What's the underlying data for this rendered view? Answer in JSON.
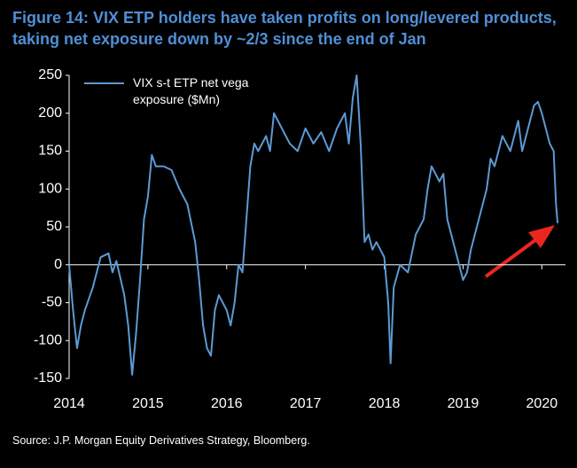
{
  "chart_data": {
    "type": "line",
    "title": "Figure 14: VIX ETP holders have taken profits on long/levered products, taking net exposure down by ~2/3 since the end of Jan",
    "source": "Source: J.P. Morgan Equity Derivatives Strategy, Bloomberg.",
    "x": [
      2014.0,
      2014.05,
      2014.1,
      2014.15,
      2014.2,
      2014.3,
      2014.4,
      2014.5,
      2014.55,
      2014.6,
      2014.7,
      2014.75,
      2014.8,
      2014.85,
      2014.9,
      2014.95,
      2015.0,
      2015.05,
      2015.1,
      2015.2,
      2015.3,
      2015.4,
      2015.5,
      2015.6,
      2015.65,
      2015.7,
      2015.75,
      2015.8,
      2015.85,
      2015.9,
      2016.0,
      2016.05,
      2016.1,
      2016.15,
      2016.2,
      2016.25,
      2016.3,
      2016.35,
      2016.4,
      2016.5,
      2016.55,
      2016.6,
      2016.7,
      2016.8,
      2016.9,
      2017.0,
      2017.1,
      2017.2,
      2017.3,
      2017.4,
      2017.5,
      2017.55,
      2017.6,
      2017.65,
      2017.7,
      2017.75,
      2017.8,
      2017.85,
      2017.9,
      2018.0,
      2018.05,
      2018.08,
      2018.12,
      2018.2,
      2018.3,
      2018.4,
      2018.5,
      2018.55,
      2018.6,
      2018.7,
      2018.75,
      2018.8,
      2018.85,
      2018.9,
      2019.0,
      2019.05,
      2019.1,
      2019.2,
      2019.3,
      2019.35,
      2019.4,
      2019.5,
      2019.6,
      2019.7,
      2019.75,
      2019.8,
      2019.9,
      2019.95,
      2020.0,
      2020.05,
      2020.1,
      2020.15,
      2020.18,
      2020.2
    ],
    "series": [
      {
        "name": "VIX s-t ETP net vega exposure ($Mn)",
        "color": "#5b9bd5",
        "values": [
          0,
          -60,
          -110,
          -80,
          -60,
          -30,
          10,
          15,
          -10,
          5,
          -40,
          -80,
          -145,
          -90,
          -20,
          60,
          90,
          145,
          130,
          130,
          125,
          100,
          80,
          30,
          -20,
          -80,
          -110,
          -120,
          -60,
          -40,
          -60,
          -80,
          -50,
          0,
          -10,
          60,
          130,
          160,
          150,
          170,
          150,
          200,
          180,
          160,
          150,
          180,
          160,
          175,
          150,
          180,
          200,
          160,
          220,
          250,
          160,
          30,
          40,
          20,
          30,
          10,
          -50,
          -130,
          -30,
          0,
          -10,
          40,
          60,
          100,
          130,
          110,
          120,
          60,
          40,
          20,
          -20,
          -10,
          20,
          60,
          100,
          140,
          130,
          170,
          150,
          190,
          150,
          170,
          210,
          215,
          200,
          180,
          160,
          150,
          80,
          55
        ]
      }
    ],
    "xlim": [
      2014,
      2020.3
    ],
    "xticks": [
      2014,
      2015,
      2016,
      2017,
      2018,
      2019,
      2020
    ],
    "ylim": [
      -150,
      250
    ],
    "yticks": [
      -150,
      -100,
      -50,
      0,
      50,
      100,
      150,
      200,
      250
    ]
  }
}
